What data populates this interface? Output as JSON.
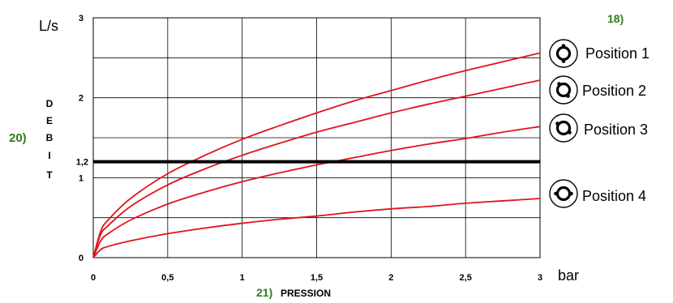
{
  "chart_data": {
    "type": "line",
    "ylabel_unit": "L/s",
    "xlabel_unit": "bar",
    "ylabel_letters": [
      "D",
      "E",
      "B",
      "I",
      "T"
    ],
    "ylabel_prefix": "20)",
    "xlabel_prefix": "21)",
    "xlabel": "PRESSION",
    "legend_header": "18)",
    "xlim": [
      0,
      3
    ],
    "ylim": [
      0,
      3
    ],
    "x_ticks": [
      "0",
      "0,5",
      "1",
      "1,5",
      "2",
      "2,5",
      "3"
    ],
    "y_ticks": [
      "0",
      "1",
      "2",
      "3"
    ],
    "grid": true,
    "reference_line": {
      "y": 1.2,
      "label": "1,2",
      "color": "#000000"
    },
    "x": [
      0,
      0.05,
      0.1,
      0.25,
      0.5,
      0.75,
      1,
      1.25,
      1.5,
      1.75,
      2,
      2.25,
      2.5,
      2.75,
      3
    ],
    "series": [
      {
        "name": "Position 1",
        "color": "#e0141c",
        "values": [
          0,
          0.33,
          0.47,
          0.74,
          1.05,
          1.28,
          1.48,
          1.65,
          1.81,
          1.96,
          2.09,
          2.22,
          2.34,
          2.45,
          2.56
        ]
      },
      {
        "name": "Position 2",
        "color": "#e0141c",
        "values": [
          0,
          0.29,
          0.4,
          0.64,
          0.91,
          1.11,
          1.28,
          1.43,
          1.57,
          1.69,
          1.81,
          1.92,
          2.02,
          2.12,
          2.22
        ]
      },
      {
        "name": "Position 3",
        "color": "#e0141c",
        "values": [
          0,
          0.21,
          0.3,
          0.47,
          0.67,
          0.82,
          0.95,
          1.06,
          1.16,
          1.25,
          1.34,
          1.42,
          1.49,
          1.57,
          1.64
        ]
      },
      {
        "name": "Position 4",
        "color": "#e0141c",
        "values": [
          0,
          0.1,
          0.14,
          0.21,
          0.3,
          0.37,
          0.43,
          0.48,
          0.52,
          0.57,
          0.61,
          0.64,
          0.68,
          0.71,
          0.74
        ]
      }
    ]
  },
  "legend_icons": [
    "valve-position-1-icon",
    "valve-position-2-icon",
    "valve-position-3-icon",
    "valve-position-4-icon"
  ]
}
